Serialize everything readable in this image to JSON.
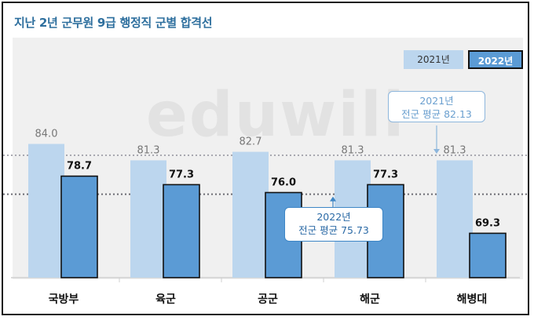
{
  "title": "지난 2년 군무원 9급 행정직 군별 합격선",
  "watermark": "eduwill",
  "legend": {
    "series_2021": "2021년",
    "series_2022": "2022년"
  },
  "callouts": {
    "avg_2021_year": "2021년",
    "avg_2021_text": "전군 평균 82.13",
    "avg_2022_year": "2022년",
    "avg_2022_text": "전군 평균 75.73"
  },
  "colors": {
    "bar_2021": "#bcd6ee",
    "bar_2022": "#5b9bd5",
    "title": "#2e6f9e",
    "background": "#f0f0f0"
  },
  "chart_data": {
    "type": "bar",
    "categories": [
      "국방부",
      "육군",
      "공군",
      "해군",
      "해병대"
    ],
    "series": [
      {
        "name": "2021년",
        "values": [
          84.0,
          81.3,
          82.7,
          81.3,
          81.3
        ]
      },
      {
        "name": "2022년",
        "values": [
          78.7,
          77.3,
          76.0,
          77.3,
          69.3
        ]
      }
    ],
    "reference_lines": [
      {
        "label": "2021년 전군 평균",
        "value": 82.13
      },
      {
        "label": "2022년 전군 평균",
        "value": 75.73
      }
    ],
    "title": "지난 2년 군무원 9급 행정직 군별 합격선",
    "xlabel": "",
    "ylabel": "",
    "legend": "top-right",
    "grid": false
  }
}
